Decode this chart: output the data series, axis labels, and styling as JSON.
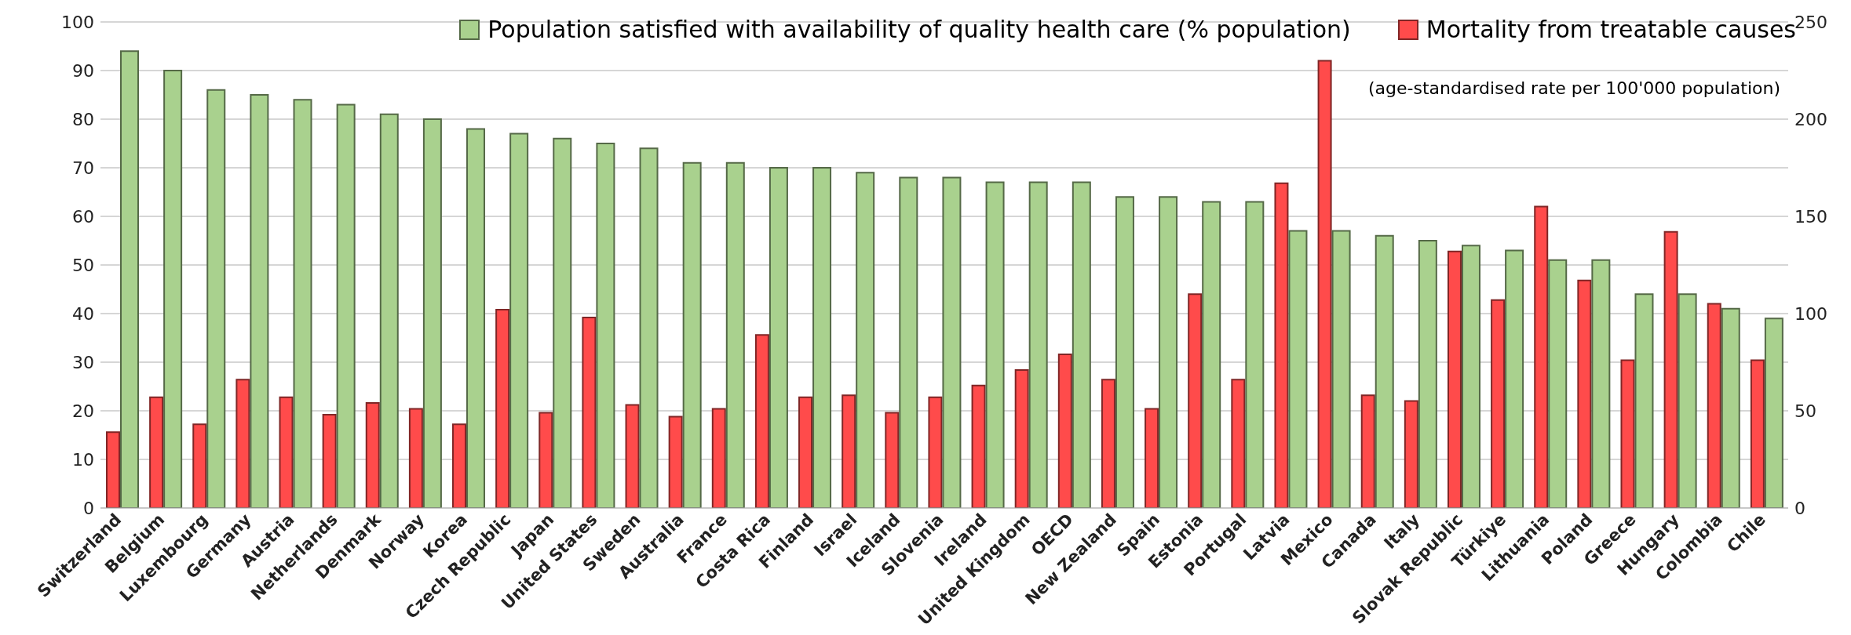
{
  "chart_data": {
    "type": "bar",
    "categories": [
      "Switzerland",
      "Belgium",
      "Luxembourg",
      "Germany",
      "Austria",
      "Netherlands",
      "Denmark",
      "Norway",
      "Korea",
      "Czech Republic",
      "Japan",
      "United States",
      "Sweden",
      "Australia",
      "France",
      "Costa Rica",
      "Finland",
      "Israel",
      "Iceland",
      "Slovenia",
      "Ireland",
      "United Kingdom",
      "OECD",
      "New Zealand",
      "Spain",
      "Estonia",
      "Portugal",
      "Latvia",
      "Mexico",
      "Canada",
      "Italy",
      "Slovak Republic",
      "Türkiye",
      "Lithuania",
      "Poland",
      "Greece",
      "Hungary",
      "Colombia",
      "Chile"
    ],
    "series": [
      {
        "name": "Population satisfied with availability of quality health care (% population)",
        "color": "#a9d18e",
        "values": [
          94,
          90,
          86,
          85,
          84,
          83,
          81,
          80,
          78,
          77,
          76,
          75,
          74,
          71,
          71,
          70,
          70,
          69,
          68,
          68,
          67,
          67,
          67,
          64,
          64,
          63,
          63,
          57,
          57,
          56,
          55,
          54,
          53,
          51,
          51,
          44,
          44,
          41,
          39
        ]
      },
      {
        "name": "Mortality from treatable causes",
        "color": "#ff4b4b",
        "axis": "y2",
        "values": [
          39,
          57,
          43,
          66,
          57,
          48,
          54,
          51,
          43,
          102,
          49,
          98,
          53,
          47,
          51,
          89,
          57,
          58,
          49,
          57,
          63,
          71,
          79,
          66,
          51,
          110,
          66,
          167,
          230,
          58,
          55,
          132,
          107,
          155,
          117,
          76,
          142,
          105,
          76
        ]
      }
    ],
    "ylim": [
      0,
      100
    ],
    "yticks": [
      0,
      10,
      20,
      30,
      40,
      50,
      60,
      70,
      80,
      90,
      100
    ],
    "y2lim": [
      0,
      250
    ],
    "y2ticks": [
      0,
      50,
      100,
      150,
      200,
      250
    ],
    "grid": "y",
    "legend": "top right",
    "annotations": [
      "(age-standardised rate per 100'000 population)"
    ]
  }
}
